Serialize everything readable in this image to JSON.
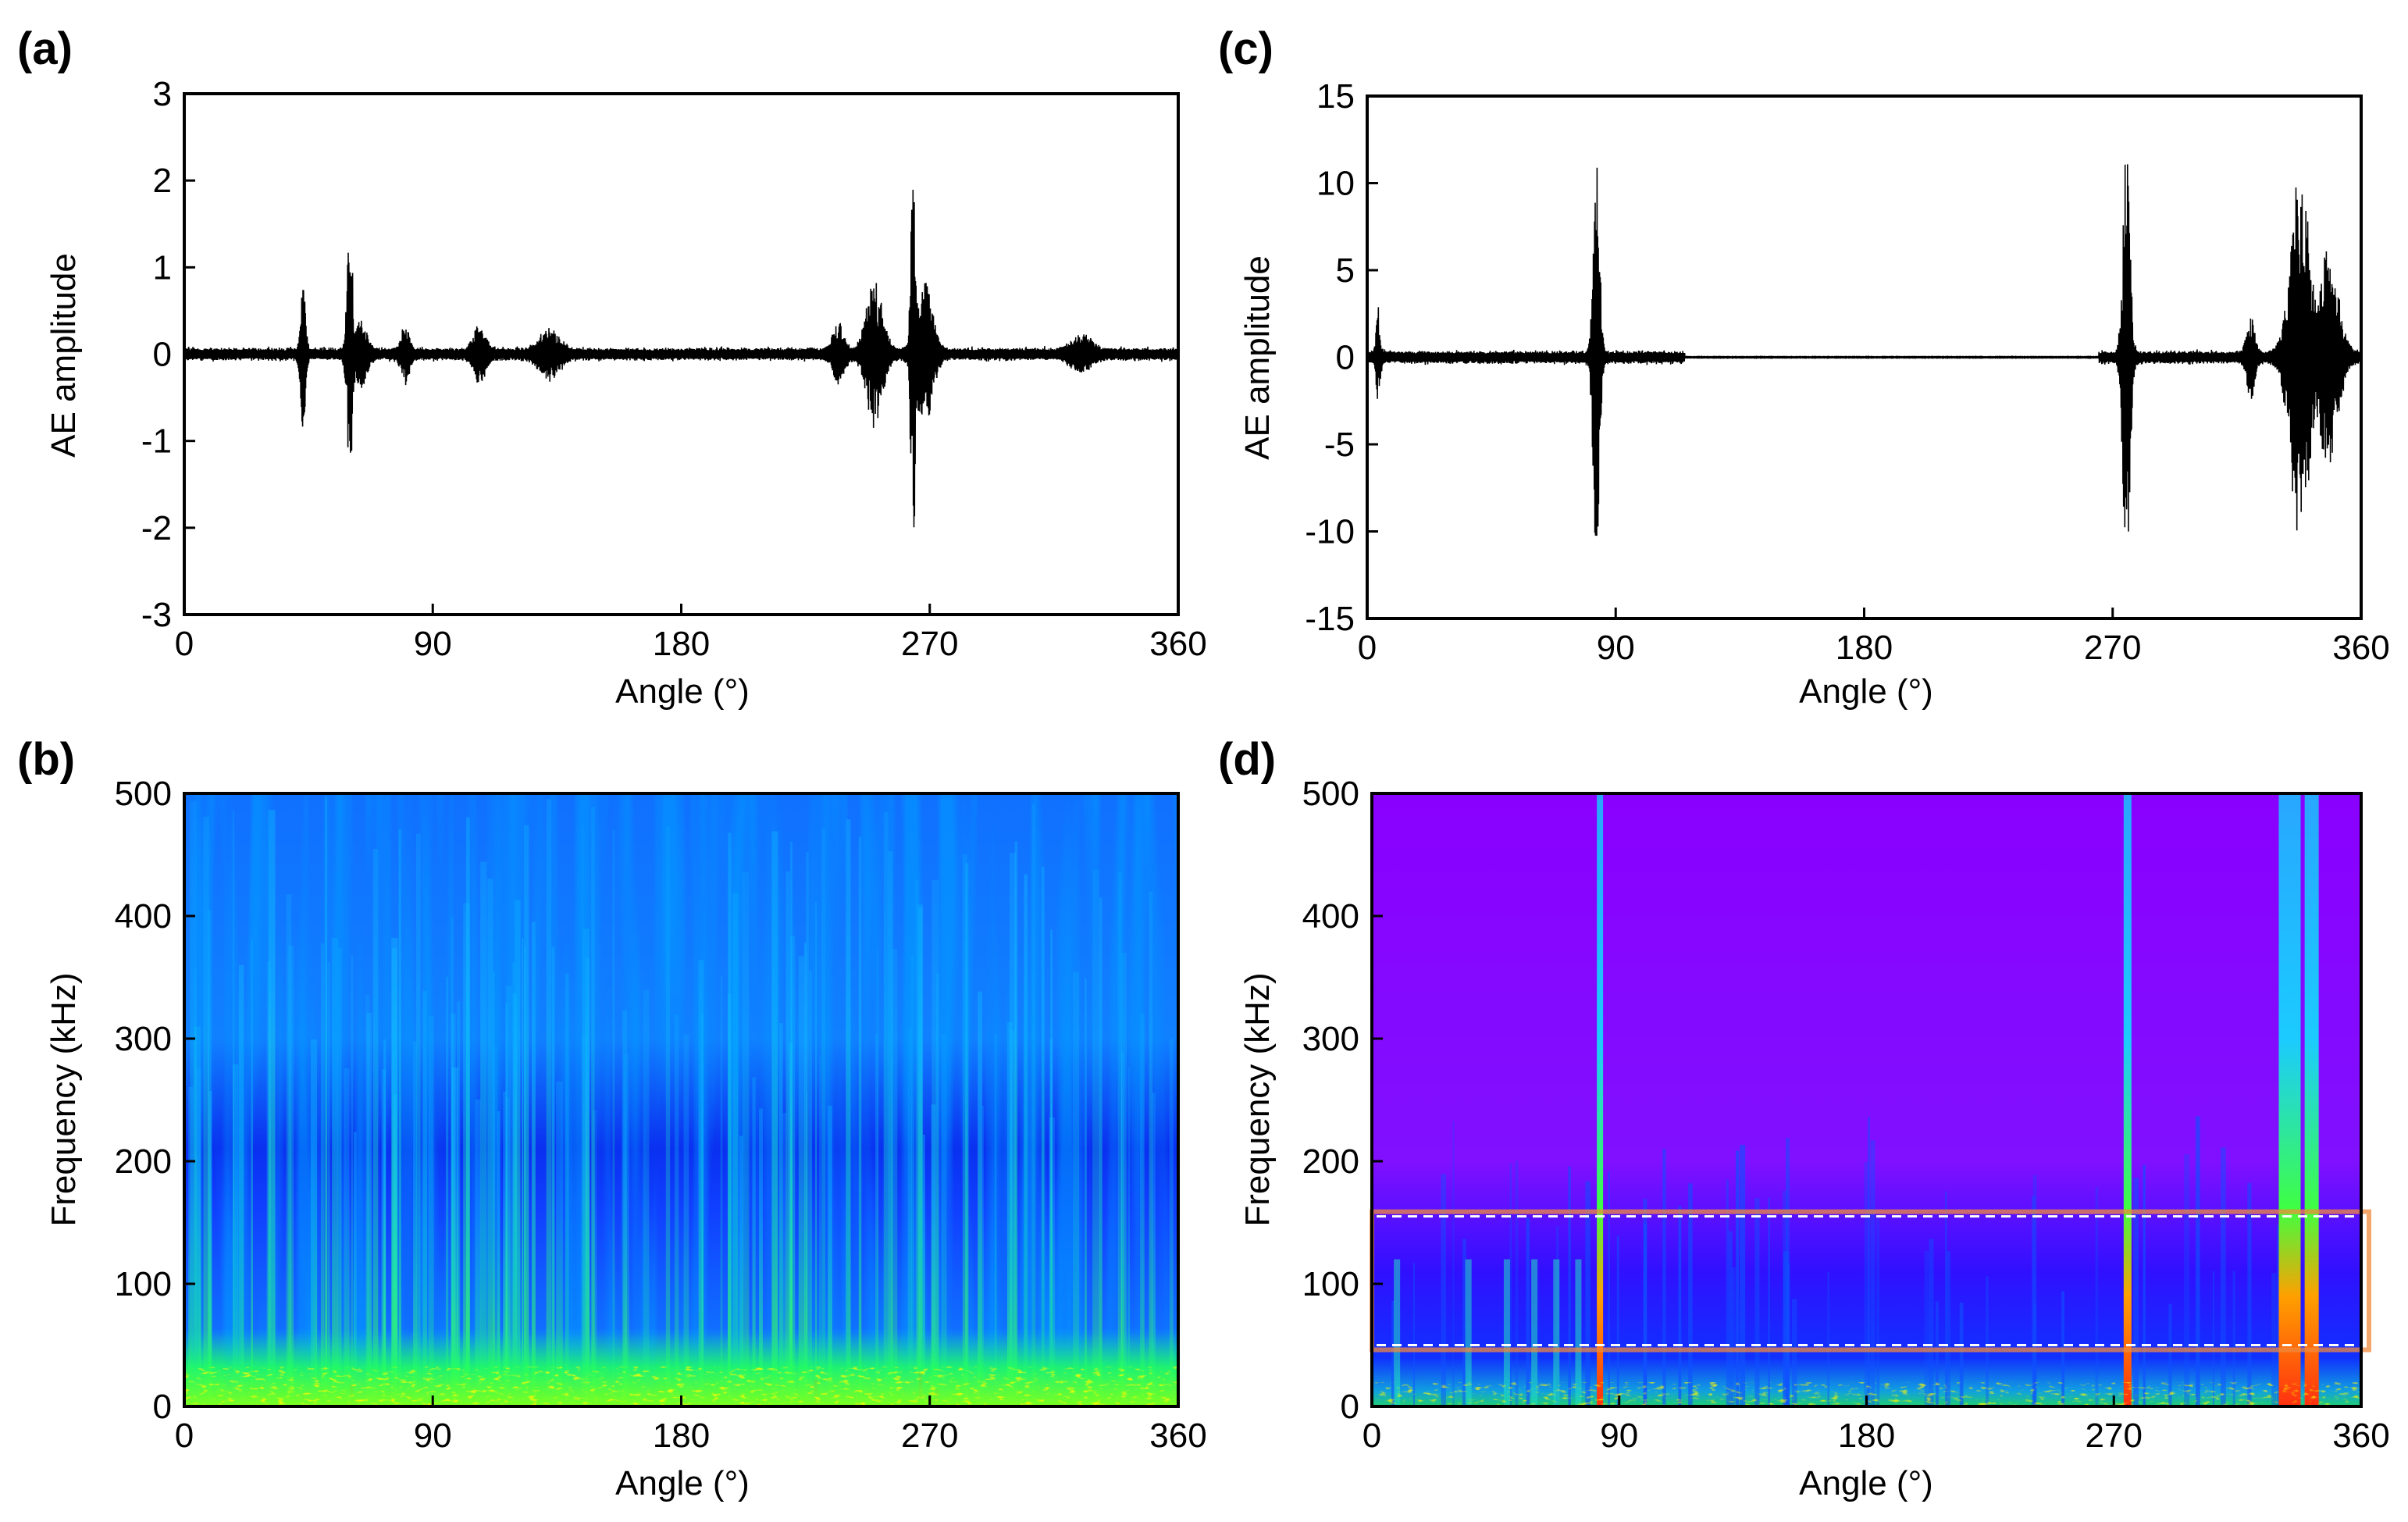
{
  "figure": {
    "colors": {
      "waveform": "#000000",
      "highlight_box": "#f08a3c",
      "highlight_dash": "#ffffff",
      "colormap": [
        "#8000ff",
        "#0010ff",
        "#0090ff",
        "#00ffff",
        "#00ff40",
        "#ffff00",
        "#ff8000",
        "#ff0000"
      ]
    }
  },
  "chart_data": [
    {
      "id": "a",
      "panel_label": "(a)",
      "type": "line",
      "title": "",
      "xlabel": "Angle (°)",
      "ylabel": "AE amplitude",
      "xlim": [
        0,
        360
      ],
      "ylim": [
        -3,
        3
      ],
      "xticks": [
        0,
        90,
        180,
        270,
        360
      ],
      "yticks": [
        -3,
        -2,
        -1,
        0,
        1,
        2,
        3
      ],
      "noise_level": 0.07,
      "bursts": [
        {
          "angle": 43,
          "amp": 0.85,
          "width": 1.2
        },
        {
          "angle": 60,
          "amp": 1.4,
          "width": 1.4
        },
        {
          "angle": 64,
          "amp": 0.35,
          "width": 3
        },
        {
          "angle": 80,
          "amp": 0.3,
          "width": 2
        },
        {
          "angle": 107,
          "amp": 0.3,
          "width": 3
        },
        {
          "angle": 132,
          "amp": 0.25,
          "width": 5
        },
        {
          "angle": 237,
          "amp": 0.3,
          "width": 3
        },
        {
          "angle": 250,
          "amp": 0.8,
          "width": 4
        },
        {
          "angle": 264,
          "amp": 2.2,
          "width": 1.2
        },
        {
          "angle": 268,
          "amp": 0.8,
          "width": 4
        },
        {
          "angle": 325,
          "amp": 0.18,
          "width": 5
        }
      ]
    },
    {
      "id": "b",
      "panel_label": "(b)",
      "type": "heatmap",
      "title": "",
      "xlabel": "Angle (°)",
      "ylabel": "Frequency (kHz)",
      "xlim": [
        0,
        360
      ],
      "ylim": [
        0,
        500
      ],
      "xticks": [
        0,
        90,
        180,
        270,
        360
      ],
      "yticks": [
        0,
        100,
        200,
        300,
        400,
        500
      ],
      "description_band_kHz": [
        0,
        200
      ]
    },
    {
      "id": "c",
      "panel_label": "(c)",
      "type": "line",
      "title": "",
      "xlabel": "Angle (°)",
      "ylabel": "AE amplitude",
      "xlim": [
        0,
        360
      ],
      "ylim": [
        -15,
        15
      ],
      "xticks": [
        0,
        90,
        180,
        270,
        360
      ],
      "yticks": [
        -15,
        -10,
        -5,
        0,
        5,
        10,
        15
      ],
      "noise_level": 0.35,
      "quiet_range": [
        115,
        265
      ],
      "bursts": [
        {
          "angle": 4,
          "amp": 2.5,
          "width": 1
        },
        {
          "angle": 83,
          "amp": 11.3,
          "width": 1.6
        },
        {
          "angle": 275,
          "amp": 11.8,
          "width": 1.8
        },
        {
          "angle": 320,
          "amp": 2.2,
          "width": 2
        },
        {
          "angle": 338,
          "amp": 10.5,
          "width": 5
        },
        {
          "angle": 348,
          "amp": 6.0,
          "width": 5
        }
      ]
    },
    {
      "id": "d",
      "panel_label": "(d)",
      "type": "heatmap",
      "title": "",
      "xlabel": "Angle (°)",
      "ylabel": "Frequency (kHz)",
      "xlim": [
        0,
        360
      ],
      "ylim": [
        0,
        500
      ],
      "xticks": [
        0,
        90,
        180,
        270,
        360
      ],
      "yticks": [
        0,
        100,
        200,
        300,
        400,
        500
      ],
      "highlight_band_kHz": [
        50,
        155
      ],
      "hot_angles": [
        83,
        275,
        334,
        342
      ]
    }
  ]
}
